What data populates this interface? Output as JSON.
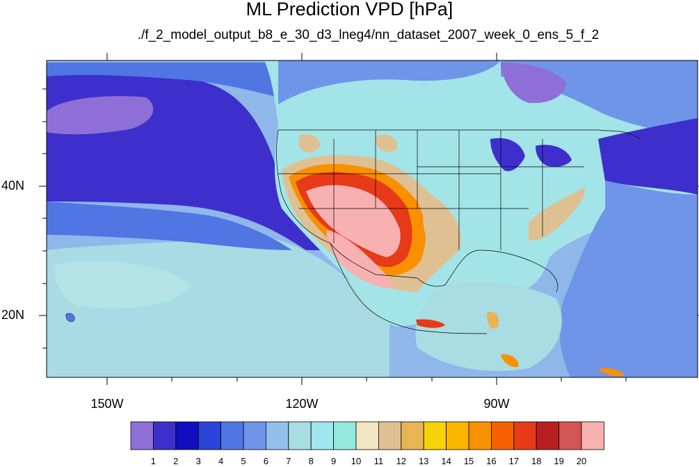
{
  "title": "ML Prediction VPD [hPa]",
  "subtitle": "./f_2_model_output_b8_e_30_d3_lneg4/nn_dataset_2007_week_0_ens_5_f_2",
  "axes": {
    "lat_labels": [
      "40N",
      "20N"
    ],
    "lon_labels": [
      "150W",
      "120W",
      "90W"
    ]
  },
  "colorbar": {
    "labels": [
      "1",
      "2",
      "3",
      "4",
      "5",
      "6",
      "7",
      "8",
      "9",
      "10",
      "11",
      "12",
      "13",
      "14",
      "15",
      "16",
      "17",
      "18",
      "19",
      "20"
    ],
    "colors": [
      "#8e6fd8",
      "#3e2fcc",
      "#0f0fc0",
      "#2a44d8",
      "#4f76e3",
      "#6f95e9",
      "#93bfec",
      "#a8dde3",
      "#9fe6ee",
      "#93eadc",
      "#f2e6c3",
      "#dfc093",
      "#e7b456",
      "#f8d208",
      "#fcb600",
      "#f99000",
      "#f56000",
      "#e63a18",
      "#b82020",
      "#d35454",
      "#f8b1b1"
    ]
  },
  "colors": {
    "ocean_base": "#8fb7ea",
    "land_base": "#a3e4e8",
    "border": "#000000"
  }
}
